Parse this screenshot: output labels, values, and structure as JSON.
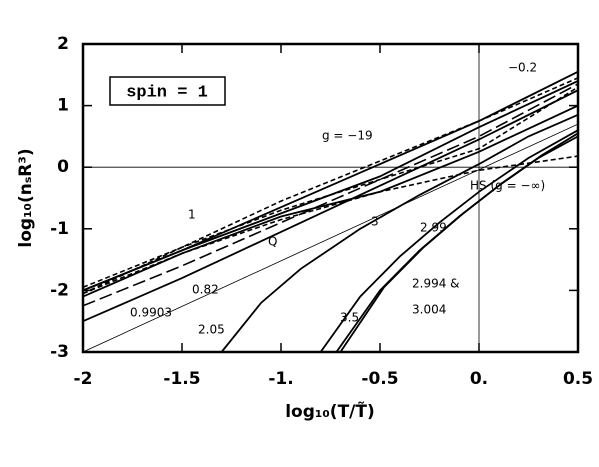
{
  "chart_data": {
    "type": "line",
    "x_label": "log₁₀(T/T̃)",
    "y_label": "log₁₀(nₛR³)",
    "annotations": [
      "spin = 1"
    ],
    "xlim": [
      -2,
      0.5
    ],
    "ylim": [
      -3,
      2
    ],
    "xticks": [
      -2,
      -1.5,
      {
        "value": -1,
        "label": "-1."
      },
      -0.5,
      {
        "value": 0,
        "label": "0."
      },
      0.5
    ],
    "yticks": [
      -3,
      -2,
      -1,
      0,
      1,
      2
    ],
    "reference_lines": {
      "x": 0,
      "y": 0
    },
    "series": [
      {
        "name": "−0.2",
        "color": "#000000",
        "style": "solid",
        "x": [
          -2,
          -1.5,
          -1,
          -0.5,
          0,
          0.5
        ],
        "values": [
          -2.0,
          -1.35,
          -0.65,
          0.05,
          0.75,
          1.55
        ]
      },
      {
        "name": "1",
        "color": "#000000",
        "style": "dashed",
        "x": [
          -2,
          -1.5,
          -1,
          -0.5,
          0,
          0.5
        ],
        "values": [
          -2.05,
          -1.3,
          -0.55,
          0.1,
          0.75,
          1.45
        ]
      },
      {
        "name": "g = −19",
        "color": "#000000",
        "style": "solid",
        "x": [
          -2,
          -1.5,
          -1,
          -0.5,
          0,
          0.5
        ],
        "values": [
          -2.0,
          -1.35,
          -0.75,
          -0.15,
          0.65,
          1.4
        ]
      },
      {
        "name": "HS (g = −∞)",
        "color": "#000000",
        "style": "dashed",
        "x": [
          -2,
          -1.5,
          -1,
          -0.5,
          0,
          0.5
        ],
        "values": [
          -2.05,
          -1.4,
          -0.85,
          -0.4,
          -0.05,
          0.18
        ]
      },
      {
        "name": "0.82",
        "color": "#000000",
        "style": "longdash",
        "x": [
          -2,
          -1.5,
          -1,
          -0.5,
          0,
          0.5
        ],
        "values": [
          -2.25,
          -1.6,
          -0.9,
          -0.2,
          0.5,
          1.35
        ]
      },
      {
        "name": "0.9903",
        "color": "#000000",
        "style": "solid",
        "x": [
          -2,
          -1.5,
          -1,
          -0.5,
          0,
          0.5
        ],
        "values": [
          -2.5,
          -1.8,
          -1.05,
          -0.3,
          0.45,
          1.25
        ]
      },
      {
        "name": "Q",
        "color": "#000000",
        "style": "thin",
        "x": [
          -2,
          0.5
        ],
        "values": [
          -3,
          0.7
        ]
      },
      {
        "name": "3",
        "color": "#000000",
        "style": "dashed",
        "x": [
          -2,
          -1.5,
          -1,
          -0.5,
          0,
          0.5
        ],
        "values": [
          -1.95,
          -1.3,
          -0.7,
          -0.2,
          0.3,
          1.3
        ]
      },
      {
        "name": "2.99",
        "color": "#000000",
        "style": "solid",
        "x": [
          -2,
          -1.5,
          -1,
          -0.5,
          0,
          0.5
        ],
        "values": [
          -2.1,
          -1.4,
          -0.8,
          -0.4,
          0.25,
          1.0
        ]
      },
      {
        "name": "2.05",
        "color": "#000000",
        "style": "solid",
        "x": [
          -1.3,
          -1.1,
          -0.9,
          -0.6,
          -0.3,
          0,
          0.25,
          0.5
        ],
        "values": [
          -3,
          -2.2,
          -1.65,
          -1.0,
          -0.45,
          0.05,
          0.5,
          0.85
        ]
      },
      {
        "name": "3.5",
        "color": "#000000",
        "style": "solid",
        "x": [
          -0.8,
          -0.6,
          -0.4,
          -0.2,
          0,
          0.25,
          0.5
        ],
        "values": [
          -3,
          -2.1,
          -1.45,
          -0.9,
          -0.4,
          0.15,
          0.6
        ]
      },
      {
        "name": "2.994 &",
        "color": "#000000",
        "style": "solid",
        "x": [
          -0.72,
          -0.5,
          -0.3,
          -0.1,
          0.1,
          0.3,
          0.5
        ],
        "values": [
          -3,
          -2.0,
          -1.35,
          -0.8,
          -0.3,
          0.15,
          0.5
        ]
      },
      {
        "name": "3.004",
        "color": "#000000",
        "style": "solid",
        "x": [
          -0.7,
          -0.48,
          -0.28,
          -0.08,
          0.12,
          0.32,
          0.5
        ],
        "values": [
          -3,
          -1.95,
          -1.3,
          -0.75,
          -0.25,
          0.2,
          0.55
        ]
      }
    ]
  }
}
